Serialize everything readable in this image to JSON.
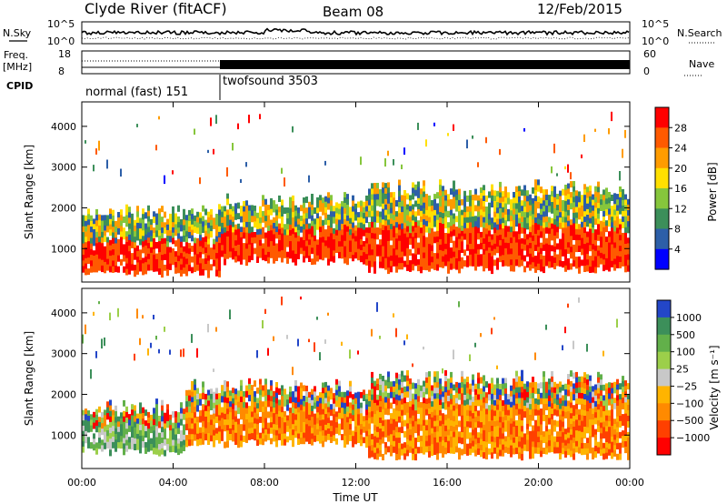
{
  "header": {
    "station": "Clyde River (fitACF)",
    "beam": "Beam 08",
    "date": "12/Feb/2015"
  },
  "top_panels": {
    "nsky_label": "N.Sky",
    "nsky_left_ticks": [
      "10^5",
      "10^0"
    ],
    "nsearch_label": "N.Search",
    "nsearch_right_ticks": [
      "10^5",
      "10^0"
    ],
    "freq_label": "Freq.",
    "freq_unit": "[MHz]",
    "freq_ticks": [
      "18",
      "8"
    ],
    "nave_label": "Nave",
    "nave_ticks": [
      "60",
      "0"
    ],
    "cpid_label": "CPID",
    "cpid_modes": [
      {
        "name": "normal (fast) 151",
        "start_hour": 0,
        "end_hour": 6
      },
      {
        "name": "twofsound 3503",
        "start_hour": 6,
        "end_hour": 24
      }
    ]
  },
  "chart_data": [
    {
      "type": "heatmap",
      "parameter": "Power",
      "ylabel": "Slant Range [km]",
      "yticks": [
        1000,
        2000,
        3000,
        4000
      ],
      "ylim": [
        180,
        4600
      ],
      "xlim": [
        0,
        24
      ],
      "colorbar": {
        "label": "Power [dB]",
        "ticks": [
          "28",
          "24",
          "20",
          "16",
          "12",
          "8",
          "4"
        ],
        "colors": [
          "#ff0000",
          "#ff5a00",
          "#ff9c00",
          "#ffe000",
          "#86c63c",
          "#3c8f5a",
          "#2d5fa8",
          "#0000ff"
        ]
      },
      "features": [
        {
          "from_hour": 0.0,
          "to_hour": 6.0,
          "lower_km": 400,
          "upper_km": 1900,
          "dominant_db": 28
        },
        {
          "from_hour": 6.0,
          "to_hour": 12.5,
          "lower_km": 700,
          "upper_km": 2200,
          "dominant_db": 24
        },
        {
          "from_hour": 12.5,
          "to_hour": 24.0,
          "lower_km": 500,
          "upper_km": 2500,
          "dominant_db": 28
        }
      ]
    },
    {
      "type": "heatmap",
      "parameter": "Velocity",
      "ylabel": "Slant Range [km]",
      "yticks": [
        1000,
        2000,
        3000,
        4000
      ],
      "ylim": [
        180,
        4600
      ],
      "xlim": [
        0,
        24
      ],
      "xlabel": "Time UT",
      "xticks": [
        "00:00",
        "04:00",
        "08:00",
        "12:00",
        "16:00",
        "20:00",
        "00:00"
      ],
      "colorbar": {
        "label": "Velocity [m s⁻¹]",
        "ticks": [
          "1000",
          "500",
          "100",
          "25",
          "−25",
          "−100",
          "−500",
          "−1000"
        ],
        "colors": [
          "#2346c8",
          "#3c8f5a",
          "#62b04a",
          "#9ccf4a",
          "#c8c8c8",
          "#ffb400",
          "#ff8a00",
          "#ff4000",
          "#ff0000"
        ]
      },
      "features": [
        {
          "from_hour": 0.0,
          "to_hour": 4.5,
          "lower_km": 600,
          "upper_km": 1700,
          "dominant_velocity": 100
        },
        {
          "from_hour": 4.5,
          "to_hour": 12.5,
          "lower_km": 800,
          "upper_km": 2200,
          "dominant_velocity": -500
        },
        {
          "from_hour": 12.5,
          "to_hour": 24.0,
          "lower_km": 500,
          "upper_km": 2400,
          "dominant_velocity": -500
        }
      ]
    }
  ]
}
